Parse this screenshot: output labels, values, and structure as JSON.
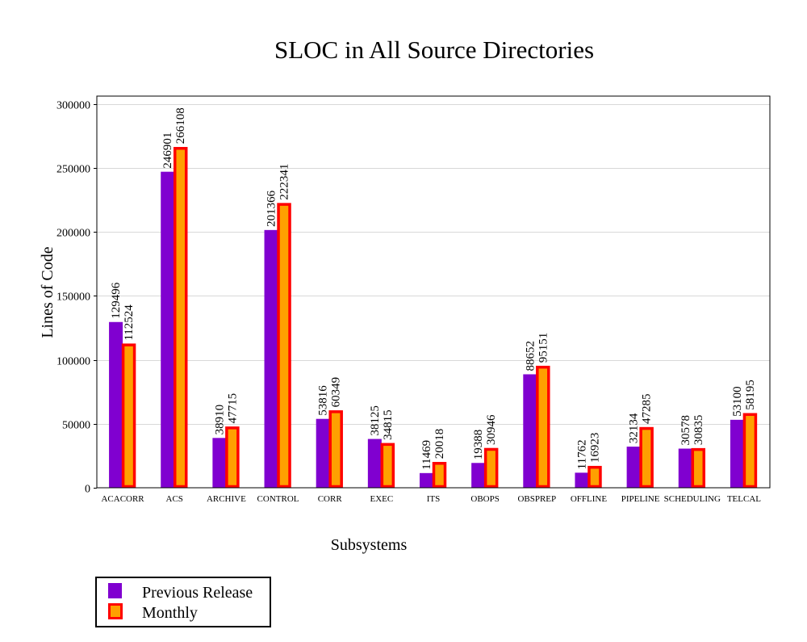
{
  "chart_data": {
    "type": "bar",
    "title": "SLOC in All Source Directories",
    "xlabel": "Subsystems",
    "ylabel": "Lines of Code",
    "ylim": [
      0,
      306000
    ],
    "yticks": [
      0,
      50000,
      100000,
      150000,
      200000,
      250000,
      300000
    ],
    "grid": true,
    "legend_position": "bottom-left",
    "categories": [
      "ACACORR",
      "ACS",
      "ARCHIVE",
      "CONTROL",
      "CORR",
      "EXEC",
      "ITS",
      "OBOPS",
      "OBSPREP",
      "OFFLINE",
      "PIPELINE",
      "SCHEDULING",
      "TELCAL"
    ],
    "series": [
      {
        "name": "Previous Release",
        "color": "#8000d0",
        "border": "#8000d0",
        "values": [
          129496,
          246901,
          38910,
          201366,
          53816,
          38125,
          11469,
          19388,
          88652,
          11762,
          32134,
          30578,
          53100
        ]
      },
      {
        "name": "Monthly",
        "color": "#ffa000",
        "border": "#ff0000",
        "values": [
          112524,
          266108,
          47715,
          222341,
          60349,
          34815,
          20018,
          30946,
          95151,
          16923,
          47285,
          30835,
          58195
        ]
      }
    ]
  }
}
